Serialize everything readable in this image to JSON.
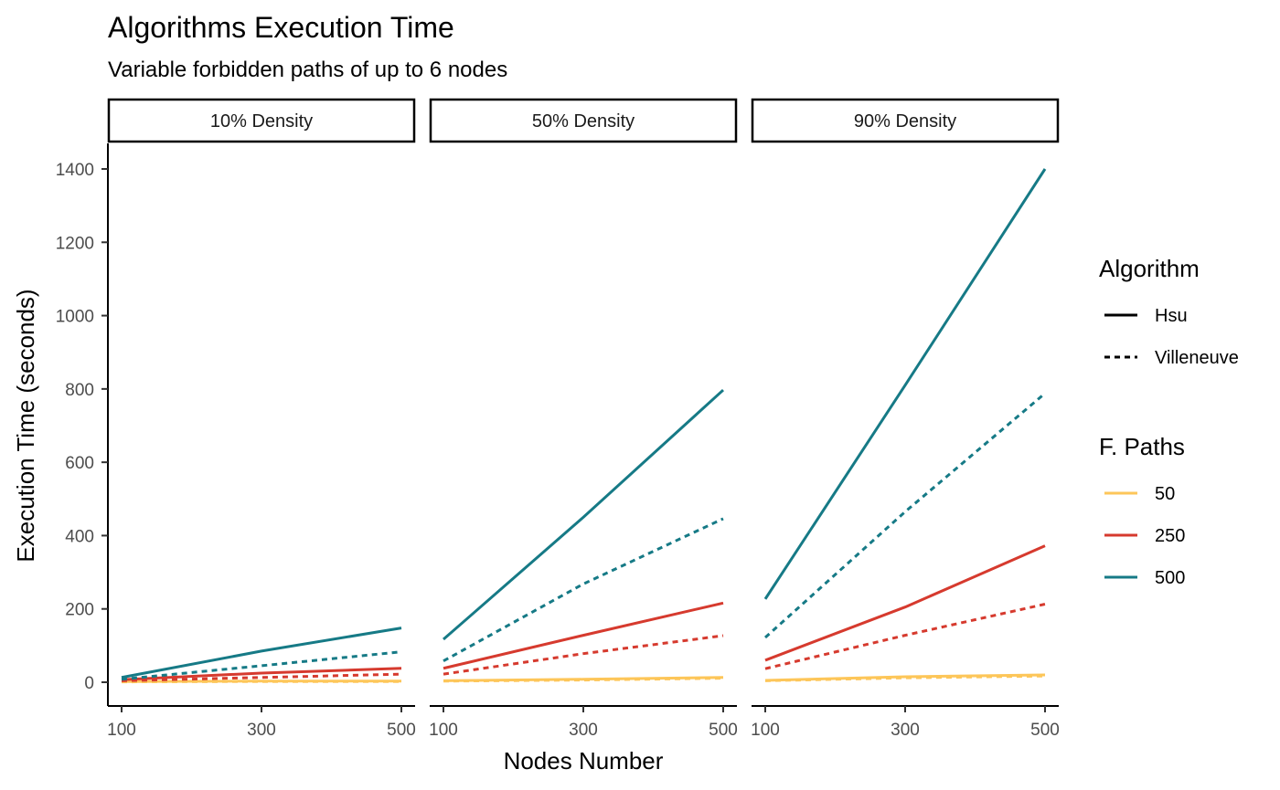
{
  "chart_data": {
    "type": "line",
    "title": "Algorithms Execution Time",
    "subtitle": "Variable forbidden paths of up to 6 nodes",
    "xlabel": "Nodes Number",
    "ylabel": "Execution Time (seconds)",
    "x": [
      100,
      300,
      500
    ],
    "x_ticks": [
      "100",
      "300",
      "500"
    ],
    "y_ticks": [
      "0",
      "200",
      "400",
      "600",
      "800",
      "1000",
      "1200",
      "1400"
    ],
    "xlim": [
      100,
      500
    ],
    "ylim": [
      0,
      1400
    ],
    "grid": false,
    "legend_position": "right",
    "facets": [
      {
        "label": "10% Density",
        "series": [
          {
            "algorithm": "Hsu",
            "f_paths": "50",
            "values": [
              2,
              3,
              3
            ]
          },
          {
            "algorithm": "Villeneuve",
            "f_paths": "50",
            "values": [
              1,
              2,
              2
            ]
          },
          {
            "algorithm": "Hsu",
            "f_paths": "250",
            "values": [
              7,
              25,
              38
            ]
          },
          {
            "algorithm": "Villeneuve",
            "f_paths": "250",
            "values": [
              4,
              13,
              22
            ]
          },
          {
            "algorithm": "Hsu",
            "f_paths": "500",
            "values": [
              13,
              85,
              148
            ]
          },
          {
            "algorithm": "Villeneuve",
            "f_paths": "500",
            "values": [
              8,
              45,
              83
            ]
          }
        ]
      },
      {
        "label": "50% Density",
        "series": [
          {
            "algorithm": "Hsu",
            "f_paths": "50",
            "values": [
              4,
              8,
              13
            ]
          },
          {
            "algorithm": "Villeneuve",
            "f_paths": "50",
            "values": [
              3,
              6,
              11
            ]
          },
          {
            "algorithm": "Hsu",
            "f_paths": "250",
            "values": [
              38,
              128,
              216
            ]
          },
          {
            "algorithm": "Villeneuve",
            "f_paths": "250",
            "values": [
              22,
              78,
              127
            ]
          },
          {
            "algorithm": "Hsu",
            "f_paths": "500",
            "values": [
              117,
              450,
              797
            ]
          },
          {
            "algorithm": "Villeneuve",
            "f_paths": "500",
            "values": [
              58,
              268,
              446
            ]
          }
        ]
      },
      {
        "label": "90% Density",
        "series": [
          {
            "algorithm": "Hsu",
            "f_paths": "50",
            "values": [
              5,
              15,
              20
            ]
          },
          {
            "algorithm": "Villeneuve",
            "f_paths": "50",
            "values": [
              4,
              12,
              17
            ]
          },
          {
            "algorithm": "Hsu",
            "f_paths": "250",
            "values": [
              60,
              205,
              372
            ]
          },
          {
            "algorithm": "Villeneuve",
            "f_paths": "250",
            "values": [
              37,
              128,
              213
            ]
          },
          {
            "algorithm": "Hsu",
            "f_paths": "500",
            "values": [
              227,
              810,
              1400
            ]
          },
          {
            "algorithm": "Villeneuve",
            "f_paths": "500",
            "values": [
              122,
              465,
              788
            ]
          }
        ]
      }
    ],
    "legend": {
      "algorithm_title": "Algorithm",
      "algorithm_entries": [
        {
          "label": "Hsu",
          "dash": "solid"
        },
        {
          "label": "Villeneuve",
          "dash": "dashed"
        }
      ],
      "fpaths_title": "F. Paths",
      "fpaths_entries": [
        {
          "label": "50",
          "color": "#FDC659"
        },
        {
          "label": "250",
          "color": "#D63A2E"
        },
        {
          "label": "500",
          "color": "#167A86"
        }
      ]
    }
  }
}
